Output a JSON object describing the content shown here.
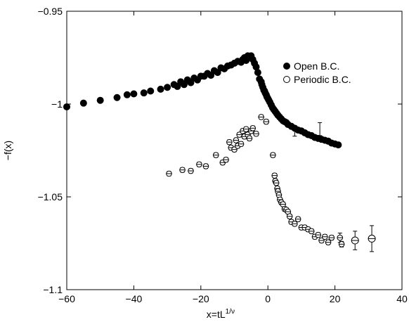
{
  "chart_data": {
    "type": "scatter",
    "xlabel": "x=tL",
    "xlabel_sup": "1/ν",
    "ylabel": "−f(x)",
    "xlim": [
      -60,
      40
    ],
    "ylim": [
      -1.1,
      -0.95
    ],
    "xticks": [
      -60,
      -40,
      -20,
      0,
      20,
      40
    ],
    "xtick_labels": [
      "−60",
      "−40",
      "−20",
      "0",
      "20",
      "40"
    ],
    "yticks": [
      -1.1,
      -1.05,
      -1.0,
      -0.95
    ],
    "ytick_labels": [
      "−1.1",
      "−1.05",
      "−1",
      "−0.95"
    ],
    "legend_position": "top-right",
    "series": [
      {
        "name": "Open B.C.",
        "marker": "filled-circle",
        "x": [
          -60,
          -55,
          -50,
          -45,
          -42,
          -40,
          -37,
          -35,
          -32,
          -30,
          -28,
          -27,
          -26,
          -25,
          -24,
          -23,
          -22,
          -21,
          -20,
          -19,
          -18,
          -17,
          -16,
          -15,
          -14,
          -13,
          -12,
          -11,
          -10,
          -9,
          -8,
          -7.5,
          -7,
          -6.5,
          -6,
          -5.5,
          -5,
          -4.5,
          -4,
          -3.5,
          -3,
          -2.5,
          -2,
          -1.8,
          -1.5,
          -1.2,
          -1,
          -0.8,
          -0.5,
          -0.3,
          0,
          0.3,
          0.6,
          1,
          1.4,
          1.8,
          2.2,
          2.6,
          3,
          3.5,
          4,
          4.5,
          5,
          5.5,
          6,
          7,
          8,
          9,
          10,
          11,
          12,
          13,
          14,
          15,
          16,
          17,
          18,
          19,
          20,
          21
        ],
        "y": [
          -1.0015,
          -0.9995,
          -0.998,
          -0.9965,
          -0.995,
          -0.9945,
          -0.994,
          -0.993,
          -0.992,
          -0.991,
          -0.9895,
          -0.9905,
          -0.988,
          -0.9895,
          -0.987,
          -0.9885,
          -0.986,
          -0.987,
          -0.985,
          -0.985,
          -0.9835,
          -0.9845,
          -0.982,
          -0.983,
          -0.9805,
          -0.981,
          -0.9795,
          -0.979,
          -0.978,
          -0.977,
          -0.9775,
          -0.976,
          -0.975,
          -0.9765,
          -0.974,
          -0.9745,
          -0.974,
          -0.976,
          -0.978,
          -0.98,
          -0.983,
          -0.9865,
          -0.988,
          -0.9895,
          -0.991,
          -0.9925,
          -0.993,
          -0.994,
          -0.995,
          -0.996,
          -0.997,
          -0.998,
          -0.999,
          -1.0005,
          -1.002,
          -1.003,
          -1.004,
          -1.005,
          -1.006,
          -1.007,
          -1.008,
          -1.009,
          -1.0095,
          -1.01,
          -1.011,
          -1.012,
          -1.013,
          -1.014,
          -1.0145,
          -1.0155,
          -1.0165,
          -1.017,
          -1.018,
          -1.0185,
          -1.019,
          -1.0195,
          -1.02,
          -1.021,
          -1.0215,
          -1.022
        ]
      },
      {
        "name": "Periodic B.C.",
        "marker": "open-circle",
        "x": [
          -29.5,
          -25.5,
          -23,
          -20.5,
          -18.5,
          -15.5,
          -13.5,
          -12.5,
          -11.5,
          -11,
          -10,
          -9.5,
          -9,
          -8.5,
          -8,
          -7.5,
          -7,
          -6.5,
          -6,
          -5.5,
          -5,
          -4.5,
          -3.5,
          -2,
          -0.5,
          1.5,
          2,
          2.2,
          2.5,
          2.8,
          3,
          3.3,
          3.6,
          4,
          4.5,
          5,
          5.5,
          6,
          6.5,
          7,
          8,
          9,
          10,
          11,
          12,
          13,
          14,
          15,
          16,
          17,
          18,
          19,
          21.5,
          22,
          26,
          31
        ],
        "y": [
          -1.0375,
          -1.0355,
          -1.036,
          -1.0325,
          -1.0335,
          -1.0275,
          -1.0315,
          -1.03,
          -1.0205,
          -1.0235,
          -1.0245,
          -1.0195,
          -1.0225,
          -1.0165,
          -1.0215,
          -1.0145,
          -1.0175,
          -1.0135,
          -1.0165,
          -1.0185,
          -1.0145,
          -1.013,
          -1.016,
          -1.007,
          -1.0095,
          -1.0275,
          -1.0385,
          -1.0415,
          -1.0425,
          -1.0455,
          -1.047,
          -1.049,
          -1.0515,
          -1.053,
          -1.054,
          -1.0565,
          -1.057,
          -1.058,
          -1.0605,
          -1.0635,
          -1.0645,
          -1.062,
          -1.0665,
          -1.0665,
          -1.0675,
          -1.0685,
          -1.0715,
          -1.0705,
          -1.0735,
          -1.0715,
          -1.0745,
          -1.072,
          -1.072,
          -1.0755,
          -1.0735,
          -1.0725
        ],
        "err": [
          0.0012,
          0.0012,
          0.0012,
          0.0012,
          0.0012,
          0.0012,
          0.0012,
          0.0012,
          0.0012,
          0.0012,
          0.0012,
          0.0012,
          0.0012,
          0.0012,
          0.0012,
          0.0012,
          0.0012,
          0.0012,
          0.0012,
          0.0012,
          0.0012,
          0.0012,
          0.0012,
          0.0012,
          0.0012,
          0.0012,
          0.0012,
          0.0012,
          0.0012,
          0.0012,
          0.0012,
          0.0012,
          0.0012,
          0.0012,
          0.0012,
          0.0012,
          0.0012,
          0.0012,
          0.0012,
          0.0012,
          0.0012,
          0.0012,
          0.0012,
          0.0012,
          0.0012,
          0.0012,
          0.0012,
          0.0012,
          0.0012,
          0.0012,
          0.0012,
          0.0012,
          0.0025,
          0.0015,
          0.005,
          0.007
        ]
      }
    ],
    "open_errorbars": [
      {
        "x": 8,
        "y": -1.0155,
        "err": 0.0018
      },
      {
        "x": 15.5,
        "y": -1.0135,
        "err": 0.0035
      }
    ]
  }
}
